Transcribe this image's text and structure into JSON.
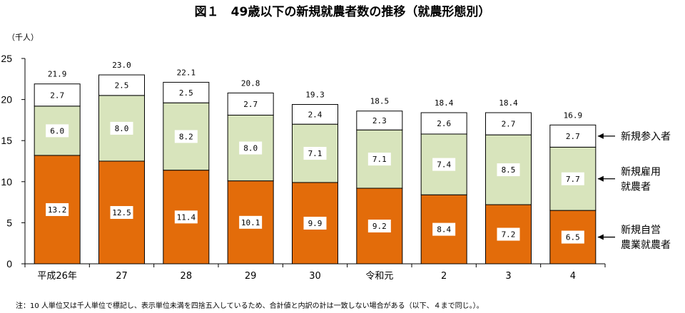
{
  "chart_data": {
    "type": "bar",
    "stacked": true,
    "title": "図１　49歳以下の新規就農者数の推移（就農形態別）",
    "unit_label": "（千人）",
    "categories": [
      "平成26年",
      "27",
      "28",
      "29",
      "30",
      "令和元",
      "2",
      "3",
      "4"
    ],
    "series": [
      {
        "name": "新規自営農業就農者",
        "color": "#E36C0A",
        "values": [
          13.2,
          12.5,
          11.4,
          10.1,
          9.9,
          9.2,
          8.4,
          7.2,
          6.5
        ],
        "labels": [
          "13.2",
          "12.5",
          "11.4",
          "10.1",
          "9.9",
          "9.2",
          "8.4",
          "7.2",
          "6.5"
        ]
      },
      {
        "name": "新規雇用就農者",
        "color": "#D8E4BC",
        "values": [
          6.0,
          8.0,
          8.2,
          8.0,
          7.1,
          7.1,
          7.4,
          8.5,
          7.7
        ],
        "labels": [
          "6.0",
          "8.0",
          "8.2",
          "8.0",
          "7.1",
          "7.1",
          "7.4",
          "8.5",
          "7.7"
        ]
      },
      {
        "name": "新規参入者",
        "color": "#FFFFFF",
        "values": [
          2.7,
          2.5,
          2.5,
          2.7,
          2.4,
          2.3,
          2.6,
          2.7,
          2.7
        ],
        "labels": [
          "2.7",
          "2.5",
          "2.5",
          "2.7",
          "2.4",
          "2.3",
          "2.6",
          "2.7",
          "2.7"
        ]
      }
    ],
    "totals": [
      "21.9",
      "23.0",
      "22.1",
      "20.8",
      "19.3",
      "18.5",
      "18.4",
      "18.4",
      "16.9"
    ],
    "ylim": [
      0,
      25
    ],
    "yticks": [
      "0",
      "5",
      "10",
      "15",
      "20",
      "25"
    ],
    "legend": {
      "placement": "right",
      "entries": [
        {
          "lines": [
            "新規参入者"
          ]
        },
        {
          "lines": [
            "新規雇用",
            "就農者"
          ]
        },
        {
          "lines": [
            "新規自営",
            "農業就農者"
          ]
        }
      ]
    },
    "grid": false
  },
  "note": "注：10 人単位又は千人単位で標記し、表示単位未満を四捨五入しているため、合計値と内訳の計は一致しない場合がある（以下、４まで同じ。）。"
}
